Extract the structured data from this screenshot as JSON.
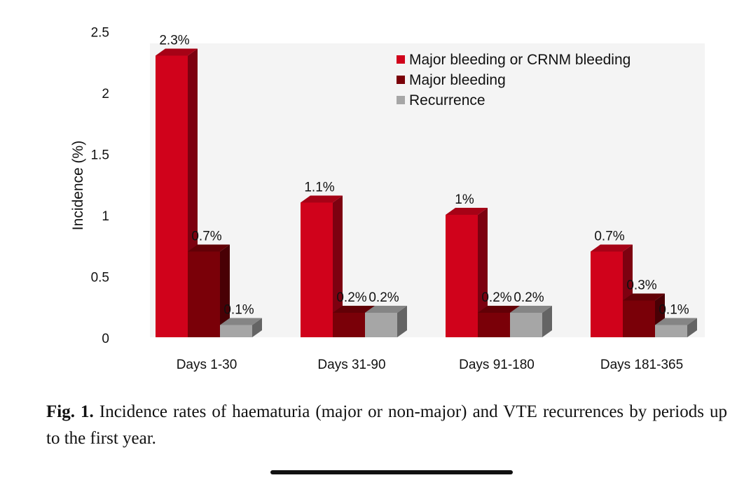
{
  "chart_data": {
    "type": "bar",
    "style": "3d-clustered",
    "title": "",
    "xlabel": "",
    "ylabel": "Incidence  (%)",
    "ylim": [
      0,
      2.5
    ],
    "yticks": [
      "0",
      "0.5",
      "1",
      "1.5",
      "2",
      "2.5"
    ],
    "ytick_values": [
      0,
      0.5,
      1,
      1.5,
      2,
      2.5
    ],
    "categories": [
      "Days 1-30",
      "Days 31-90",
      "Days 91-180",
      "Days 181-365"
    ],
    "series": [
      {
        "name": "Major bleeding or CRNM bleeding",
        "color": "#d0021b",
        "values": [
          2.3,
          1.1,
          1.0,
          0.7
        ],
        "labels": [
          "2.3%",
          "1.1%",
          "1%",
          "0.7%"
        ]
      },
      {
        "name": "Major bleeding",
        "color": "#7a0008",
        "values": [
          0.7,
          0.2,
          0.2,
          0.3
        ],
        "labels": [
          "0.7%",
          "0.2%",
          "0.2%",
          "0.3%"
        ]
      },
      {
        "name": "Recurrence",
        "color": "#a6a6a6",
        "values": [
          0.1,
          0.2,
          0.2,
          0.1
        ],
        "labels": [
          "0.1%",
          "0.2%",
          "0.2%",
          "0.1%"
        ]
      }
    ],
    "legend_position": "top-right",
    "grid": false
  },
  "caption": {
    "label": "Fig. 1.",
    "text": " Incidence rates of haematuria (major or non-major) and VTE re­currences by periods up to the first year."
  }
}
